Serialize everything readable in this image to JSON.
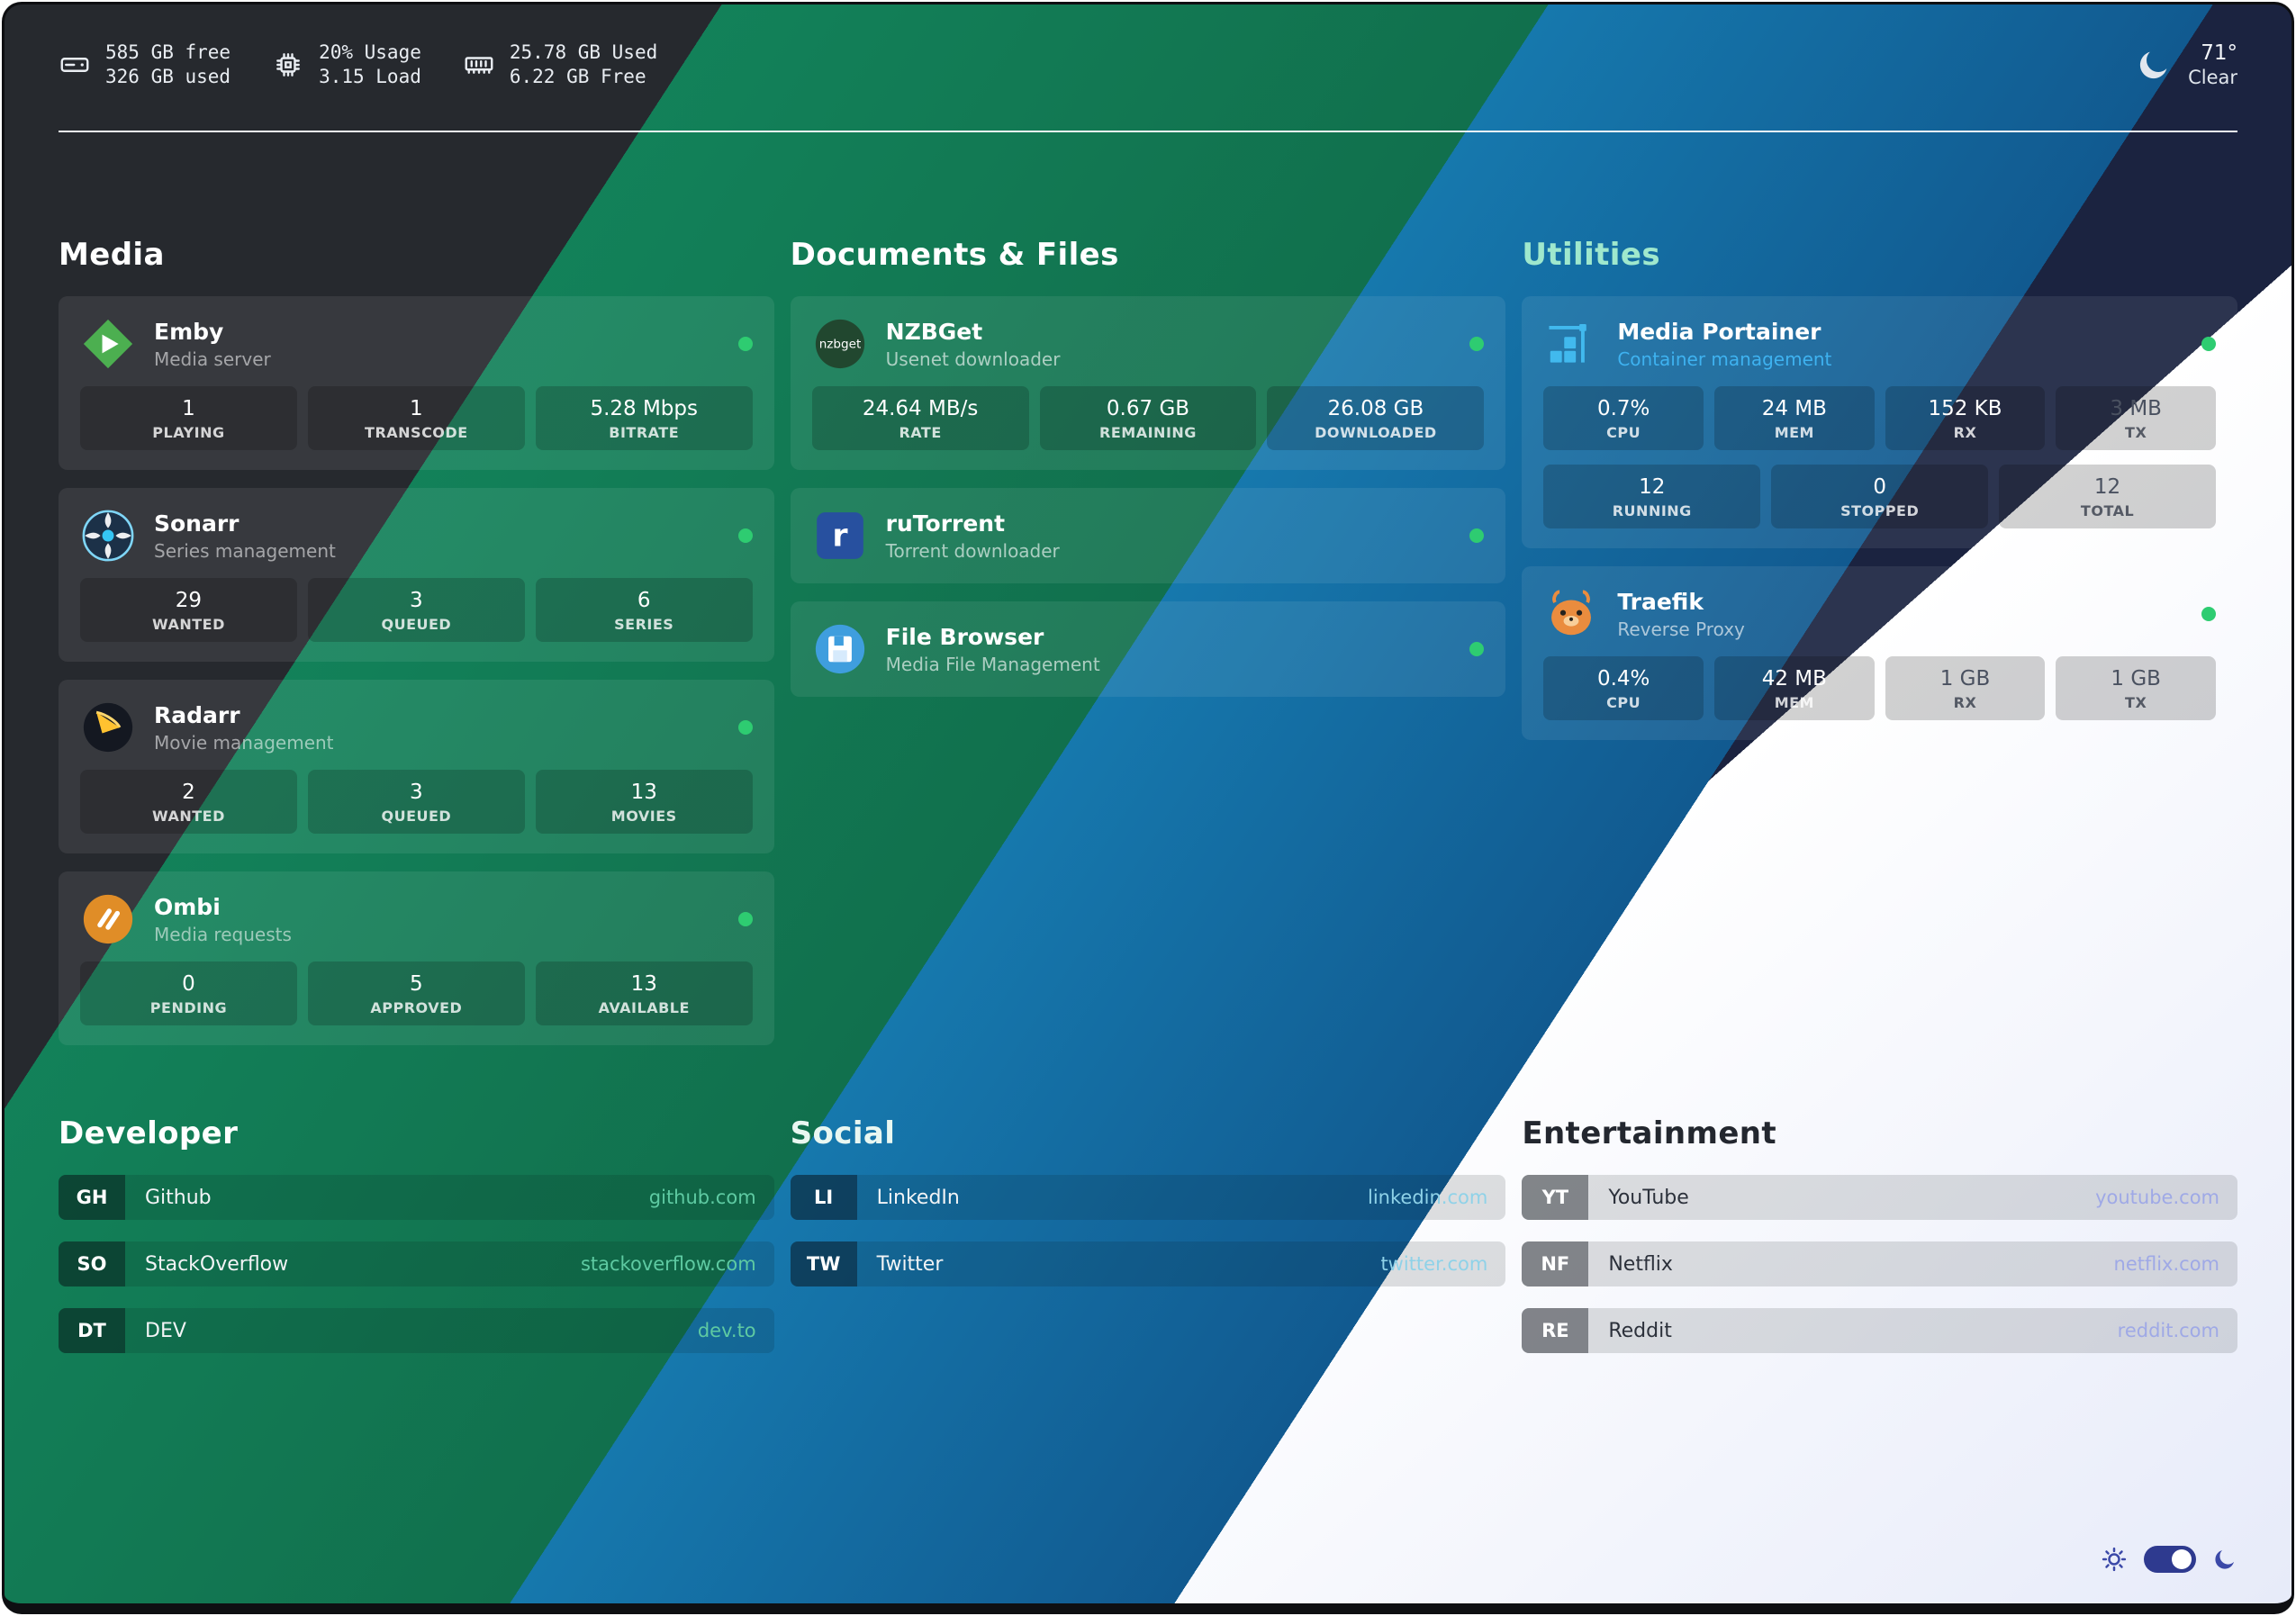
{
  "colors": {
    "band_dark": "#26292e",
    "band_green_a": "#13855c",
    "band_green_b": "#11704d",
    "band_blue_a": "#1678ad",
    "band_blue_b": "#115a90",
    "band_navy": "#1b2340",
    "band_white_a": "#ffffff",
    "band_white_b": "#e7ebf9",
    "status_ok": "#2ecc71",
    "divider": "#f2f5f8",
    "accent_toggle": "#2e3a8f",
    "toggle_icon": "#3b49a8"
  },
  "topbar": {
    "stats": [
      {
        "icon": "disk-icon",
        "line1": "585 GB free",
        "line2": "326 GB used"
      },
      {
        "icon": "cpu-icon",
        "line1": "20% Usage",
        "line2": "3.15 Load"
      },
      {
        "icon": "ram-icon",
        "line1": "25.78 GB Used",
        "line2": "6.22 GB Free"
      }
    ],
    "weather": {
      "icon": "moon-icon",
      "temp": "71°",
      "condition": "Clear"
    }
  },
  "service_sections": [
    {
      "title": "Media",
      "title_color": "#ffffff",
      "cards": [
        {
          "id": "emby",
          "icon": "emby-icon",
          "name": "Emby",
          "subtitle": "Media server",
          "subtitle_color": "rgba(255,255,255,0.55)",
          "stat_rows": [
            [
              {
                "value": "1",
                "label": "PLAYING"
              },
              {
                "value": "1",
                "label": "TRANSCODE"
              },
              {
                "value": "5.28 Mbps",
                "label": "BITRATE"
              }
            ]
          ]
        },
        {
          "id": "sonarr",
          "icon": "sonarr-icon",
          "name": "Sonarr",
          "subtitle": "Series management",
          "subtitle_color": "rgba(255,255,255,0.55)",
          "stat_rows": [
            [
              {
                "value": "29",
                "label": "WANTED"
              },
              {
                "value": "3",
                "label": "QUEUED"
              },
              {
                "value": "6",
                "label": "SERIES"
              }
            ]
          ]
        },
        {
          "id": "radarr",
          "icon": "radarr-icon",
          "name": "Radarr",
          "subtitle": "Movie management",
          "subtitle_color": "rgba(255,255,255,0.55)",
          "stat_rows": [
            [
              {
                "value": "2",
                "label": "WANTED"
              },
              {
                "value": "3",
                "label": "QUEUED"
              },
              {
                "value": "13",
                "label": "MOVIES"
              }
            ]
          ]
        },
        {
          "id": "ombi",
          "icon": "ombi-icon",
          "name": "Ombi",
          "subtitle": "Media requests",
          "subtitle_color": "rgba(255,255,255,0.55)",
          "stat_rows": [
            [
              {
                "value": "0",
                "label": "PENDING"
              },
              {
                "value": "5",
                "label": "APPROVED"
              },
              {
                "value": "13",
                "label": "AVAILABLE"
              }
            ]
          ]
        }
      ]
    },
    {
      "title": "Documents & Files",
      "title_color": "#ffffff",
      "cards": [
        {
          "id": "nzbget",
          "icon": "nzbget-icon",
          "icon_text": "nzbget",
          "name": "NZBGet",
          "subtitle": "Usenet downloader",
          "subtitle_color": "rgba(255,255,255,0.62)",
          "stat_rows": [
            [
              {
                "value": "24.64 MB/s",
                "label": "RATE"
              },
              {
                "value": "0.67 GB",
                "label": "REMAINING"
              },
              {
                "value": "26.08 GB",
                "label": "DOWNLOADED"
              }
            ]
          ]
        },
        {
          "id": "rutorrent",
          "icon": "rutorrent-icon",
          "icon_text": "r",
          "name": "ruTorrent",
          "subtitle": "Torrent downloader",
          "subtitle_color": "rgba(255,255,255,0.62)",
          "stat_rows": []
        },
        {
          "id": "filebrowser",
          "icon": "filebrowser-icon",
          "name": "File Browser",
          "subtitle": "Media File Management",
          "subtitle_color": "rgba(255,255,255,0.62)",
          "stat_rows": []
        }
      ]
    },
    {
      "title": "Utilities",
      "title_color": "#9fe8cd",
      "cards": [
        {
          "id": "portainer",
          "icon": "portainer-icon",
          "name": "Media Portainer",
          "subtitle": "Container management",
          "subtitle_color": "#3eb2f0",
          "stat_rows": [
            [
              {
                "value": "0.7%",
                "label": "CPU"
              },
              {
                "value": "24 MB",
                "label": "MEM"
              },
              {
                "value": "152 KB",
                "label": "RX"
              },
              {
                "value": "3 MB",
                "label": "TX",
                "light": true
              }
            ],
            [
              {
                "value": "12",
                "label": "RUNNING"
              },
              {
                "value": "0",
                "label": "STOPPED"
              },
              {
                "value": "12",
                "label": "TOTAL",
                "light": true
              }
            ]
          ]
        },
        {
          "id": "traefik",
          "icon": "traefik-icon",
          "name": "Traefik",
          "subtitle": "Reverse Proxy",
          "subtitle_color": "rgba(255,255,255,0.62)",
          "stat_rows": [
            [
              {
                "value": "0.4%",
                "label": "CPU"
              },
              {
                "value": "42 MB",
                "label": "MEM"
              },
              {
                "value": "1 GB",
                "label": "RX",
                "light": true
              },
              {
                "value": "1 GB",
                "label": "TX",
                "light": true
              }
            ]
          ]
        }
      ]
    }
  ],
  "link_sections": [
    {
      "title": "Developer",
      "title_color": "#ffffff",
      "name_color": "#f2f4f6",
      "url_color": "#5ecaa2",
      "links": [
        {
          "abbr": "GH",
          "name": "Github",
          "url": "github.com"
        },
        {
          "abbr": "SO",
          "name": "StackOverflow",
          "url": "stackoverflow.com"
        },
        {
          "abbr": "DT",
          "name": "DEV",
          "url": "dev.to"
        }
      ]
    },
    {
      "title": "Social",
      "title_color": "#e9f7f1",
      "name_color": "#f2f4f6",
      "url_color": "#8fd2e8",
      "links": [
        {
          "abbr": "LI",
          "name": "LinkedIn",
          "url": "linkedin.com"
        },
        {
          "abbr": "TW",
          "name": "Twitter",
          "url": "twitter.com"
        }
      ]
    },
    {
      "title": "Entertainment",
      "title_color": "#23272f",
      "name_color": "#2c313b",
      "url_color": "#9fa9e6",
      "links": [
        {
          "abbr": "YT",
          "name": "YouTube",
          "url": "youtube.com"
        },
        {
          "abbr": "NF",
          "name": "Netflix",
          "url": "netflix.com"
        },
        {
          "abbr": "RE",
          "name": "Reddit",
          "url": "reddit.com"
        }
      ]
    }
  ],
  "theme_toggle": {
    "state": "dark",
    "checked": true
  }
}
